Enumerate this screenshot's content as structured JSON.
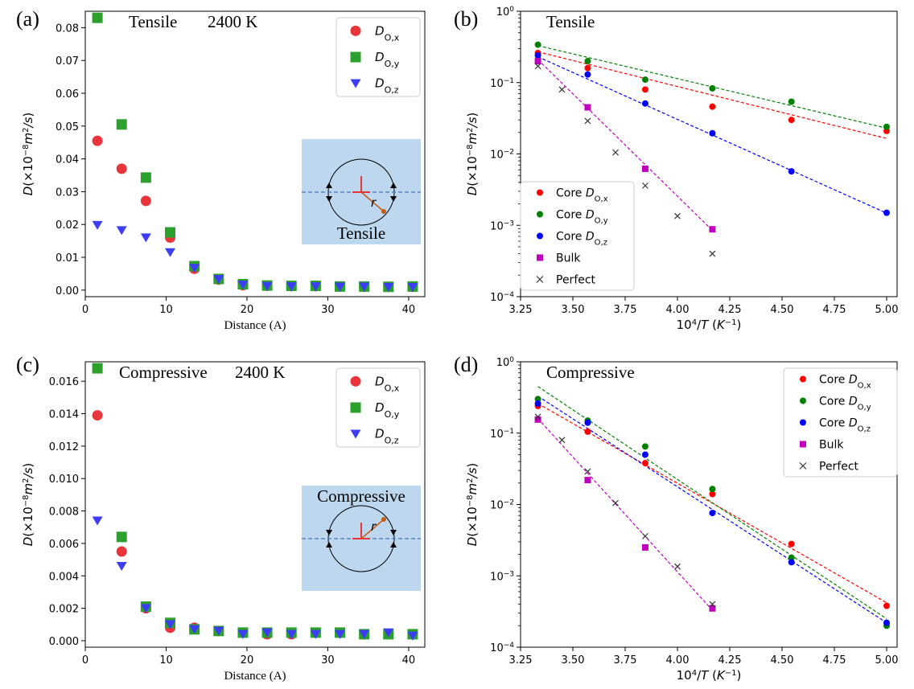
{
  "chart_data": [
    {
      "panel_label": "(a)",
      "type": "scatter",
      "annotation": "Tensile",
      "temperature": "2400 K",
      "xlabel": "Distance (A)",
      "ylabel": "D(×10⁻⁸m²/s)",
      "xlim": [
        0,
        42
      ],
      "ylim": [
        -0.002,
        0.085
      ],
      "yscale": "linear",
      "xticks": [
        0,
        10,
        20,
        30,
        40
      ],
      "xtick_labels": [
        "0",
        "10",
        "20",
        "30",
        "40"
      ],
      "yticks": [
        0,
        0.01,
        0.02,
        0.03,
        0.04,
        0.05,
        0.06,
        0.07,
        0.08
      ],
      "ytick_labels": [
        "0.00",
        "0.01",
        "0.02",
        "0.03",
        "0.04",
        "0.05",
        "0.06",
        "0.07",
        "0.08"
      ],
      "legend_position": "top-right",
      "inset": {
        "label": "Tensile",
        "r_label": "r"
      },
      "x": [
        1.5,
        4.5,
        7.5,
        10.5,
        13.5,
        16.5,
        19.5,
        22.5,
        25.5,
        28.5,
        31.5,
        34.5,
        37.5,
        40.5
      ],
      "series": [
        {
          "name": "D_O,x",
          "sub": "O,x",
          "marker": "circle",
          "color": "#e8353b",
          "values": [
            0.0455,
            0.037,
            0.0272,
            0.016,
            0.0065,
            0.0032,
            0.0015,
            0.0013,
            0.0012,
            0.0012,
            0.0011,
            0.001,
            0.001,
            0.001
          ]
        },
        {
          "name": "D_O,y",
          "sub": "O,y",
          "marker": "square",
          "color": "#2ca02c",
          "values": [
            0.083,
            0.0505,
            0.0343,
            0.0176,
            0.0073,
            0.0034,
            0.0018,
            0.0014,
            0.0013,
            0.0013,
            0.0011,
            0.0011,
            0.001,
            0.0011
          ]
        },
        {
          "name": "D_O,z",
          "sub": "O,z",
          "marker": "triangle-down",
          "color": "#3d3df5",
          "values": [
            0.0198,
            0.0182,
            0.016,
            0.0115,
            0.0067,
            0.0033,
            0.0016,
            0.0012,
            0.0011,
            0.0011,
            0.001,
            0.001,
            0.0009,
            0.0009
          ]
        }
      ]
    },
    {
      "panel_label": "(b)",
      "type": "scatter",
      "annotation": "Tensile",
      "xlabel": "10⁴/T (K⁻¹)",
      "ylabel": "D(×10⁻⁸m²/s)",
      "xlim": [
        3.25,
        5.05
      ],
      "ylim": [
        0.0001,
        1
      ],
      "yscale": "log",
      "xticks": [
        3.25,
        3.5,
        3.75,
        4.0,
        4.25,
        4.5,
        4.75,
        5.0
      ],
      "xtick_labels": [
        "3.25",
        "3.50",
        "3.75",
        "4.00",
        "4.25",
        "4.50",
        "4.75",
        "5.00"
      ],
      "yticks": [
        0.0001,
        0.001,
        0.01,
        0.1,
        1
      ],
      "ytick_base": "10",
      "ytick_exponents": [
        "−4",
        "−3",
        "−2",
        "−1",
        "0"
      ],
      "legend_position": "bottom-left",
      "series": [
        {
          "name": "Core D_O,x",
          "prefix": "Core ",
          "sub": "O,x",
          "marker": "circle",
          "color": "#ff0000",
          "x": [
            3.333,
            3.571,
            3.846,
            4.167,
            4.545,
            5.0
          ],
          "values": [
            0.26,
            0.16,
            0.08,
            0.046,
            0.03,
            0.021
          ],
          "fit": [
            3.333,
            0.27,
            5.0,
            0.0165
          ]
        },
        {
          "name": "Core D_O,y",
          "prefix": "Core ",
          "sub": "O,y",
          "marker": "circle",
          "color": "#008000",
          "x": [
            3.333,
            3.571,
            3.846,
            4.167,
            4.545,
            5.0
          ],
          "values": [
            0.34,
            0.2,
            0.11,
            0.083,
            0.054,
            0.024
          ],
          "fit": [
            3.333,
            0.33,
            5.0,
            0.023
          ]
        },
        {
          "name": "Core D_O,z",
          "prefix": "Core ",
          "sub": "O,z",
          "marker": "circle",
          "color": "#0000ff",
          "x": [
            3.333,
            3.571,
            3.846,
            4.167,
            4.545,
            5.0
          ],
          "values": [
            0.24,
            0.13,
            0.051,
            0.0195,
            0.0057,
            0.0015
          ],
          "fit": [
            3.333,
            0.23,
            5.0,
            0.00148
          ]
        },
        {
          "name": "Bulk",
          "marker": "square",
          "color": "#bf00bf",
          "x": [
            3.333,
            3.571,
            3.846,
            4.167
          ],
          "values": [
            0.2,
            0.045,
            0.0062,
            0.00088
          ],
          "fit": [
            3.333,
            0.21,
            4.167,
            0.00085
          ]
        },
        {
          "name": "Perfect",
          "marker": "x",
          "color": "#333333",
          "x": [
            3.333,
            3.448,
            3.571,
            3.704,
            3.846,
            4.0,
            4.167
          ],
          "values": [
            0.17,
            0.08,
            0.029,
            0.0105,
            0.0036,
            0.00135,
            0.0004
          ]
        }
      ]
    },
    {
      "panel_label": "(c)",
      "type": "scatter",
      "annotation": "Compressive",
      "temperature": "2400 K",
      "xlabel": "Distance (A)",
      "ylabel": "D(×10⁻⁸m²/s)",
      "xlim": [
        0,
        42
      ],
      "ylim": [
        -0.0004,
        0.0172
      ],
      "yscale": "linear",
      "xticks": [
        0,
        10,
        20,
        30,
        40
      ],
      "xtick_labels": [
        "0",
        "10",
        "20",
        "30",
        "40"
      ],
      "yticks": [
        0,
        0.002,
        0.004,
        0.006,
        0.008,
        0.01,
        0.012,
        0.014,
        0.016
      ],
      "ytick_labels": [
        "0.000",
        "0.002",
        "0.004",
        "0.006",
        "0.008",
        "0.010",
        "0.012",
        "0.014",
        "0.016"
      ],
      "legend_position": "top-right",
      "inset": {
        "label": "Compressive",
        "r_label": "r"
      },
      "x": [
        1.5,
        4.5,
        7.5,
        10.5,
        13.5,
        16.5,
        19.5,
        22.5,
        25.5,
        28.5,
        31.5,
        34.5,
        37.5,
        40.5
      ],
      "series": [
        {
          "name": "D_O,x",
          "sub": "O,x",
          "marker": "circle",
          "color": "#e8353b",
          "values": [
            0.0139,
            0.0055,
            0.002,
            0.0008,
            0.0008,
            0.0006,
            0.0005,
            0.0004,
            0.0004,
            0.0005,
            0.0005,
            0.0004,
            0.0004,
            0.0004
          ]
        },
        {
          "name": "D_O,y",
          "sub": "O,y",
          "marker": "square",
          "color": "#2ca02c",
          "values": [
            0.0168,
            0.0064,
            0.0021,
            0.0011,
            0.0007,
            0.0006,
            0.0005,
            0.0005,
            0.0005,
            0.0005,
            0.0005,
            0.0004,
            0.0004,
            0.0004
          ]
        },
        {
          "name": "D_O,z",
          "sub": "O,z",
          "marker": "triangle-down",
          "color": "#3d3df5",
          "values": [
            0.0074,
            0.0046,
            0.002,
            0.001,
            0.0007,
            0.0006,
            0.0004,
            0.0005,
            0.0004,
            0.0004,
            0.0004,
            0.0004,
            0.0005,
            0.0003
          ]
        }
      ]
    },
    {
      "panel_label": "(d)",
      "type": "scatter",
      "annotation": "Compressive",
      "xlabel": "10⁴/T (K⁻¹)",
      "ylabel": "D(×10⁻⁸m²/s)",
      "xlim": [
        3.25,
        5.05
      ],
      "ylim": [
        0.0001,
        1
      ],
      "yscale": "log",
      "xticks": [
        3.25,
        3.5,
        3.75,
        4.0,
        4.25,
        4.5,
        4.75,
        5.0
      ],
      "xtick_labels": [
        "3.25",
        "3.50",
        "3.75",
        "4.00",
        "4.25",
        "4.50",
        "4.75",
        "5.00"
      ],
      "yticks": [
        0.0001,
        0.001,
        0.01,
        0.1,
        1
      ],
      "ytick_base": "10",
      "ytick_exponents": [
        "−4",
        "−3",
        "−2",
        "−1",
        "0"
      ],
      "legend_position": "top-right",
      "series": [
        {
          "name": "Core D_O,x",
          "prefix": "Core ",
          "sub": "O,x",
          "marker": "circle",
          "color": "#ff0000",
          "x": [
            3.333,
            3.571,
            3.846,
            4.167,
            4.545,
            5.0
          ],
          "values": [
            0.24,
            0.105,
            0.038,
            0.014,
            0.0028,
            0.00038
          ],
          "fit": [
            3.333,
            0.26,
            5.0,
            0.00042
          ]
        },
        {
          "name": "Core D_O,y",
          "prefix": "Core ",
          "sub": "O,y",
          "marker": "circle",
          "color": "#008000",
          "x": [
            3.333,
            3.571,
            3.846,
            4.167,
            4.545,
            5.0
          ],
          "values": [
            0.3,
            0.15,
            0.065,
            0.0165,
            0.0018,
            0.0002
          ],
          "fit": [
            3.333,
            0.45,
            5.0,
            0.00025
          ]
        },
        {
          "name": "Core D_O,z",
          "prefix": "Core ",
          "sub": "O,z",
          "marker": "circle",
          "color": "#0000ff",
          "x": [
            3.333,
            3.571,
            3.846,
            4.167,
            4.545,
            5.0
          ],
          "values": [
            0.26,
            0.14,
            0.05,
            0.0076,
            0.00155,
            0.00022
          ],
          "fit": [
            3.333,
            0.33,
            5.0,
            0.00022
          ]
        },
        {
          "name": "Bulk",
          "marker": "square",
          "color": "#bf00bf",
          "x": [
            3.333,
            3.571,
            3.846,
            4.167
          ],
          "values": [
            0.155,
            0.022,
            0.0025,
            0.00035
          ],
          "fit": [
            3.333,
            0.16,
            4.167,
            0.00033
          ]
        },
        {
          "name": "Perfect",
          "marker": "x",
          "color": "#333333",
          "x": [
            3.333,
            3.448,
            3.571,
            3.704,
            3.846,
            4.0,
            4.167
          ],
          "values": [
            0.17,
            0.08,
            0.029,
            0.0105,
            0.0036,
            0.00135,
            0.0004
          ]
        }
      ]
    }
  ]
}
